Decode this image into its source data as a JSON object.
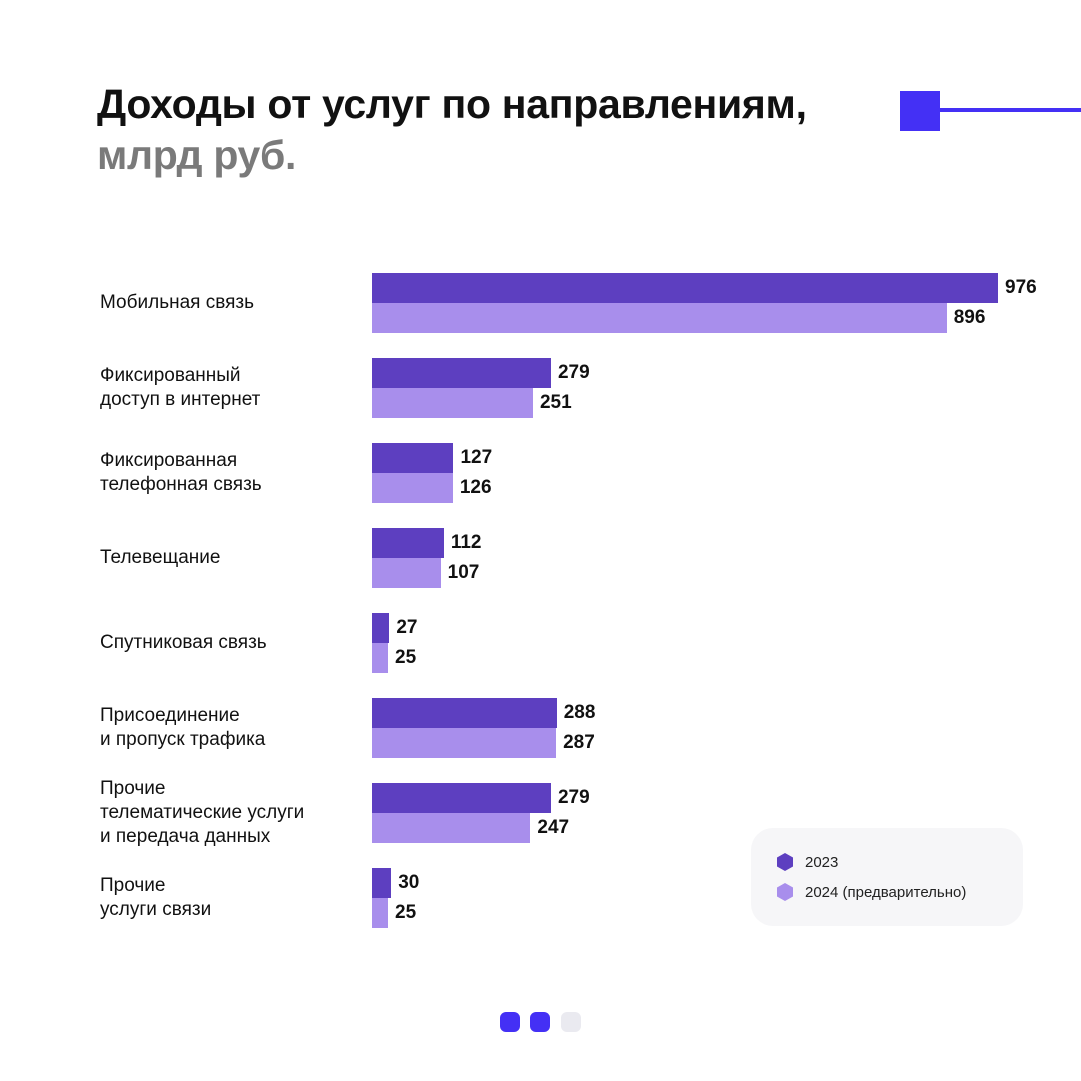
{
  "header": {
    "title": "Доходы от услуг по направлениям,",
    "subtitle": "млрд руб."
  },
  "colors": {
    "series_2023": "#5d3fc0",
    "series_2024": "#a88eec",
    "accent": "#4430f5",
    "dot_inactive": "#eaeaf0"
  },
  "chart_data": {
    "type": "bar",
    "orientation": "horizontal",
    "title": "Доходы от услуг по направлениям, млрд руб.",
    "categories": [
      "Мобильная связь",
      "Фиксированный\nдоступ в интернет",
      "Фиксированная\nтелефонная связь",
      "Телевещание",
      "Спутниковая связь",
      "Присоединение\nи пропуск трафика",
      "Прочие\nтелематические услуги\nи передача данных",
      "Прочие\nуслуги связи"
    ],
    "series": [
      {
        "name": "2023",
        "values": [
          976,
          279,
          127,
          112,
          27,
          288,
          279,
          30
        ]
      },
      {
        "name": "2024 (предварительно)",
        "values": [
          896,
          251,
          126,
          107,
          25,
          287,
          247,
          25
        ]
      }
    ],
    "data_labels": true,
    "grid": false,
    "legend_position": "bottom-right"
  },
  "legend": {
    "items": [
      {
        "label": "2023",
        "icon": "hexagon-icon",
        "color": "#5d3fc0"
      },
      {
        "label": "2024 (предварительно)",
        "icon": "hexagon-icon",
        "color": "#a88eec"
      }
    ]
  },
  "pagination": {
    "total": 3,
    "active": [
      true,
      true,
      false
    ]
  }
}
